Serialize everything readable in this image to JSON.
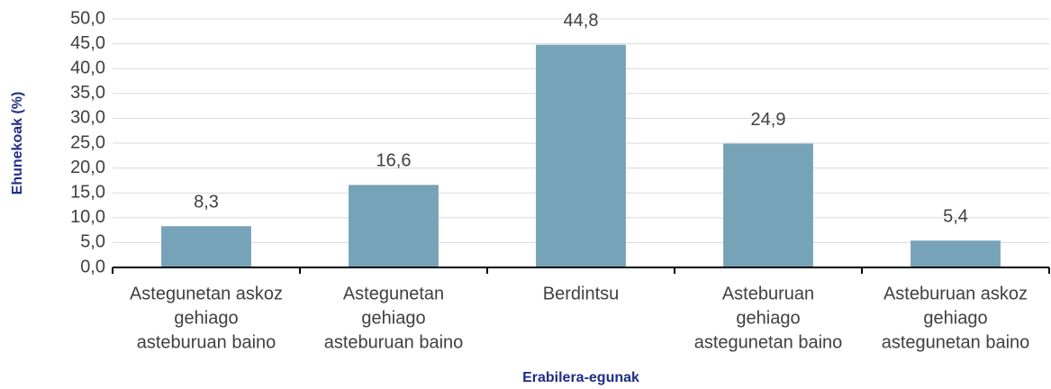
{
  "chart_data": {
    "type": "bar",
    "x_label": "Erabilera-egunak",
    "y_label": "Ehunekoak (%)",
    "categories": [
      [
        "Astegunetan askoz",
        "gehiago",
        "asteburuan baino"
      ],
      [
        "Astegunetan",
        "gehiago",
        "asteburuan baino"
      ],
      [
        "Berdintsu"
      ],
      [
        "Asteburuan",
        "gehiago",
        "astegunetan baino"
      ],
      [
        "Asteburuan askoz",
        "gehiago",
        "astegunetan baino"
      ]
    ],
    "values": [
      8.3,
      16.6,
      44.8,
      24.9,
      5.4
    ],
    "value_labels": [
      "8,3",
      "16,6",
      "44,8",
      "24,9",
      "5,4"
    ],
    "color": "#77a3b8",
    "ylim": [
      0,
      50
    ],
    "yticks": [
      {
        "value": 0,
        "label": "0,0"
      },
      {
        "value": 5,
        "label": "5,0"
      },
      {
        "value": 10,
        "label": "10,0"
      },
      {
        "value": 15,
        "label": "15,0"
      },
      {
        "value": 20,
        "label": "20,0"
      },
      {
        "value": 25,
        "label": "25,0"
      },
      {
        "value": 30,
        "label": "30,0"
      },
      {
        "value": 35,
        "label": "35,0"
      },
      {
        "value": 40,
        "label": "40,0"
      },
      {
        "value": 45,
        "label": "45,0"
      },
      {
        "value": 50,
        "label": "50,0"
      }
    ],
    "grid": true
  }
}
